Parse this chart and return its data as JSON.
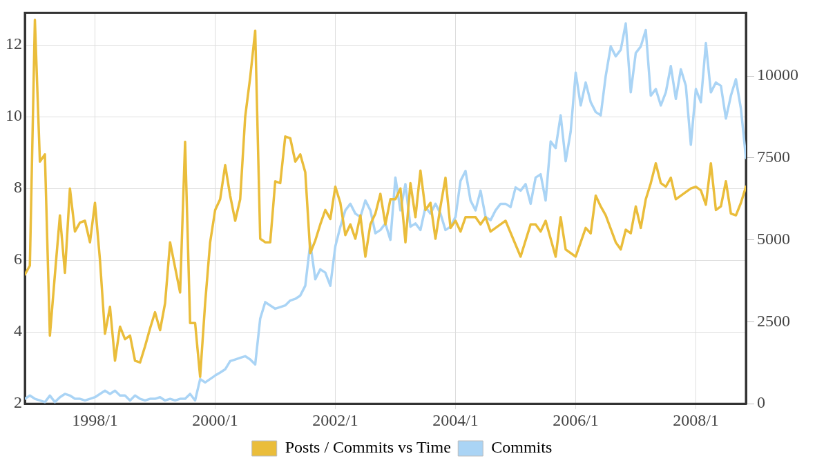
{
  "chart_data": {
    "type": "line",
    "xlim": [
      "1996-11",
      "2008-11"
    ],
    "xticks": [
      {
        "value": "1998-01",
        "label": "1998/1"
      },
      {
        "value": "2000-01",
        "label": "2000/1"
      },
      {
        "value": "2002-01",
        "label": "2002/1"
      },
      {
        "value": "2004-01",
        "label": "2004/1"
      },
      {
        "value": "2006-01",
        "label": "2006/1"
      },
      {
        "value": "2008-01",
        "label": "2008/1"
      }
    ],
    "ylim": [
      2,
      12.9
    ],
    "yticks": [
      2,
      4,
      6,
      8,
      10,
      12
    ],
    "y2lim": [
      0,
      11930
    ],
    "y2ticks": [
      0,
      2500,
      5000,
      7500,
      10000
    ],
    "grid": true,
    "legend": "bottom",
    "marker": "none",
    "line_style": "solid",
    "series": [
      {
        "name": "Posts / Commits vs Time",
        "color": "#eabd3b",
        "axis": "y",
        "x": [
          "1996-11",
          "1996-12",
          "1997-01",
          "1997-02",
          "1997-03",
          "1997-04",
          "1997-05",
          "1997-06",
          "1997-07",
          "1997-08",
          "1997-09",
          "1997-10",
          "1997-11",
          "1997-12",
          "1998-01",
          "1998-02",
          "1998-03",
          "1998-04",
          "1998-05",
          "1998-06",
          "1998-07",
          "1998-08",
          "1998-09",
          "1998-10",
          "1998-11",
          "1998-12",
          "1999-01",
          "1999-02",
          "1999-03",
          "1999-04",
          "1999-05",
          "1999-06",
          "1999-07",
          "1999-08",
          "1999-09",
          "1999-10",
          "1999-11",
          "1999-12",
          "2000-01",
          "2000-02",
          "2000-03",
          "2000-04",
          "2000-05",
          "2000-06",
          "2000-07",
          "2000-08",
          "2000-09",
          "2000-10",
          "2000-11",
          "2000-12",
          "2001-01",
          "2001-02",
          "2001-03",
          "2001-04",
          "2001-05",
          "2001-06",
          "2001-07",
          "2001-08",
          "2001-09",
          "2001-10",
          "2001-11",
          "2001-12",
          "2002-01",
          "2002-02",
          "2002-03",
          "2002-04",
          "2002-05",
          "2002-06",
          "2002-07",
          "2002-08",
          "2002-09",
          "2002-10",
          "2002-11",
          "2002-12",
          "2003-01",
          "2003-02",
          "2003-03",
          "2003-04",
          "2003-05",
          "2003-06",
          "2003-07",
          "2003-08",
          "2003-09",
          "2003-10",
          "2003-11",
          "2003-12",
          "2004-01",
          "2004-02",
          "2004-03",
          "2004-04",
          "2004-05",
          "2004-06",
          "2004-07",
          "2004-08",
          "2004-09",
          "2004-10",
          "2004-11",
          "2005-02",
          "2005-04",
          "2005-05",
          "2005-06",
          "2005-07",
          "2005-09",
          "2005-10",
          "2005-11",
          "2006-01",
          "2006-03",
          "2006-04",
          "2006-05",
          "2006-06",
          "2006-07",
          "2006-09",
          "2006-10",
          "2006-11",
          "2006-12",
          "2007-01",
          "2007-02",
          "2007-03",
          "2007-04",
          "2007-05",
          "2007-06",
          "2007-07",
          "2007-08",
          "2007-09",
          "2007-10",
          "2007-11",
          "2007-12",
          "2008-01",
          "2008-02",
          "2008-03",
          "2008-04",
          "2008-05",
          "2008-06",
          "2008-07",
          "2008-08",
          "2008-09",
          "2008-10",
          "2008-11"
        ],
        "values": [
          5.6,
          5.85,
          12.7,
          8.75,
          8.95,
          3.9,
          5.6,
          7.25,
          5.65,
          8.0,
          6.8,
          7.05,
          7.1,
          6.5,
          7.6,
          6.0,
          3.95,
          4.7,
          3.2,
          4.15,
          3.8,
          3.9,
          3.2,
          3.15,
          3.6,
          4.1,
          4.55,
          4.05,
          4.8,
          6.5,
          5.8,
          5.1,
          9.3,
          4.25,
          4.25,
          2.75,
          4.8,
          6.5,
          7.4,
          7.7,
          8.65,
          7.8,
          7.1,
          7.7,
          10.0,
          11.1,
          12.4,
          6.6,
          6.5,
          6.5,
          8.2,
          8.15,
          9.45,
          9.4,
          8.75,
          8.95,
          8.45,
          6.2,
          6.55,
          7.0,
          7.4,
          7.15,
          8.05,
          7.6,
          6.7,
          7.0,
          6.6,
          7.25,
          6.1,
          7.0,
          7.3,
          7.85,
          7.0,
          7.7,
          7.7,
          8.0,
          6.5,
          8.15,
          7.2,
          8.5,
          7.4,
          7.6,
          6.6,
          7.5,
          8.3,
          6.9,
          7.1,
          6.8,
          7.2,
          7.2,
          7.2,
          7.0,
          7.2,
          6.8,
          6.9,
          7.0,
          7.1,
          6.1,
          7.0,
          7.0,
          6.8,
          7.1,
          6.1,
          7.2,
          6.3,
          6.1,
          6.9,
          6.75,
          7.8,
          7.5,
          7.25,
          6.5,
          6.3,
          6.85,
          6.75,
          7.5,
          6.9,
          7.7,
          8.15,
          8.7,
          8.15,
          8.05,
          8.3,
          7.7,
          7.8,
          7.9,
          8.0,
          8.05,
          7.95,
          7.55,
          8.7,
          7.4,
          7.5,
          8.2,
          7.3,
          7.25,
          7.6,
          8.05
        ]
      },
      {
        "name": "Commits",
        "color": "#aad4f5",
        "axis": "y2",
        "x": [
          "1996-11",
          "1996-12",
          "1997-01",
          "1997-02",
          "1997-03",
          "1997-04",
          "1997-05",
          "1997-06",
          "1997-07",
          "1997-08",
          "1997-09",
          "1997-10",
          "1997-11",
          "1997-12",
          "1998-01",
          "1998-02",
          "1998-03",
          "1998-04",
          "1998-05",
          "1998-06",
          "1998-07",
          "1998-08",
          "1998-09",
          "1998-10",
          "1998-11",
          "1998-12",
          "1999-01",
          "1999-02",
          "1999-03",
          "1999-04",
          "1999-05",
          "1999-06",
          "1999-07",
          "1999-08",
          "1999-09",
          "1999-10",
          "1999-11",
          "2000-01",
          "2000-02",
          "2000-03",
          "2000-04",
          "2000-05",
          "2000-06",
          "2000-07",
          "2000-08",
          "2000-09",
          "2000-10",
          "2000-11",
          "2000-12",
          "2001-01",
          "2001-02",
          "2001-03",
          "2001-04",
          "2001-05",
          "2001-06",
          "2001-07",
          "2001-08",
          "2001-09",
          "2001-10",
          "2001-11",
          "2001-12",
          "2002-01",
          "2002-02",
          "2002-03",
          "2002-04",
          "2002-05",
          "2002-06",
          "2002-07",
          "2002-08",
          "2002-09",
          "2002-10",
          "2002-11",
          "2002-12",
          "2003-01",
          "2003-02",
          "2003-03",
          "2003-04",
          "2003-05",
          "2003-06",
          "2003-07",
          "2003-08",
          "2003-09",
          "2003-10",
          "2003-11",
          "2003-12",
          "2004-01",
          "2004-02",
          "2004-03",
          "2004-04",
          "2004-05",
          "2004-06",
          "2004-07",
          "2004-08",
          "2004-09",
          "2004-10",
          "2004-11",
          "2004-12",
          "2005-01",
          "2005-02",
          "2005-03",
          "2005-04",
          "2005-05",
          "2005-06",
          "2005-07",
          "2005-08",
          "2005-09",
          "2005-10",
          "2005-11",
          "2005-12",
          "2006-01",
          "2006-02",
          "2006-03",
          "2006-04",
          "2006-05",
          "2006-06",
          "2006-07",
          "2006-08",
          "2006-09",
          "2006-10",
          "2006-11",
          "2006-12",
          "2007-01",
          "2007-02",
          "2007-03",
          "2007-04",
          "2007-05",
          "2007-06",
          "2007-07",
          "2007-08",
          "2007-09",
          "2007-10",
          "2007-11",
          "2007-12",
          "2008-01",
          "2008-02",
          "2008-03",
          "2008-04",
          "2008-05",
          "2008-06",
          "2008-07",
          "2008-08",
          "2008-09",
          "2008-10",
          "2008-11"
        ],
        "values": [
          150,
          250,
          150,
          100,
          50,
          250,
          50,
          200,
          300,
          250,
          150,
          150,
          100,
          150,
          200,
          300,
          400,
          300,
          400,
          250,
          250,
          100,
          250,
          150,
          100,
          150,
          150,
          200,
          100,
          150,
          100,
          150,
          150,
          300,
          100,
          750,
          650,
          860,
          950,
          1050,
          1300,
          1350,
          1400,
          1450,
          1350,
          1200,
          2600,
          3100,
          3000,
          2900,
          2950,
          3000,
          3150,
          3200,
          3300,
          3600,
          4900,
          3800,
          4100,
          4000,
          3600,
          4800,
          5400,
          5900,
          6100,
          5800,
          5700,
          6200,
          5900,
          5200,
          5300,
          5500,
          5000,
          6900,
          5900,
          6700,
          5400,
          5500,
          5300,
          6000,
          5800,
          6100,
          5800,
          5300,
          5400,
          5700,
          6800,
          7100,
          6200,
          5900,
          6500,
          5700,
          5600,
          5900,
          6100,
          6100,
          6000,
          6600,
          6500,
          6700,
          6100,
          6900,
          7000,
          6200,
          8000,
          7800,
          8800,
          7400,
          8300,
          10100,
          9100,
          9800,
          9200,
          8900,
          8800,
          10000,
          10900,
          10600,
          10800,
          11600,
          9500,
          10700,
          10900,
          11400,
          9400,
          9600,
          9100,
          9500,
          10300,
          9300,
          10200,
          9700,
          7900,
          9600,
          9200,
          11000,
          9500,
          9800,
          9700,
          8700,
          9400,
          9900,
          9000,
          7500
        ]
      }
    ]
  }
}
